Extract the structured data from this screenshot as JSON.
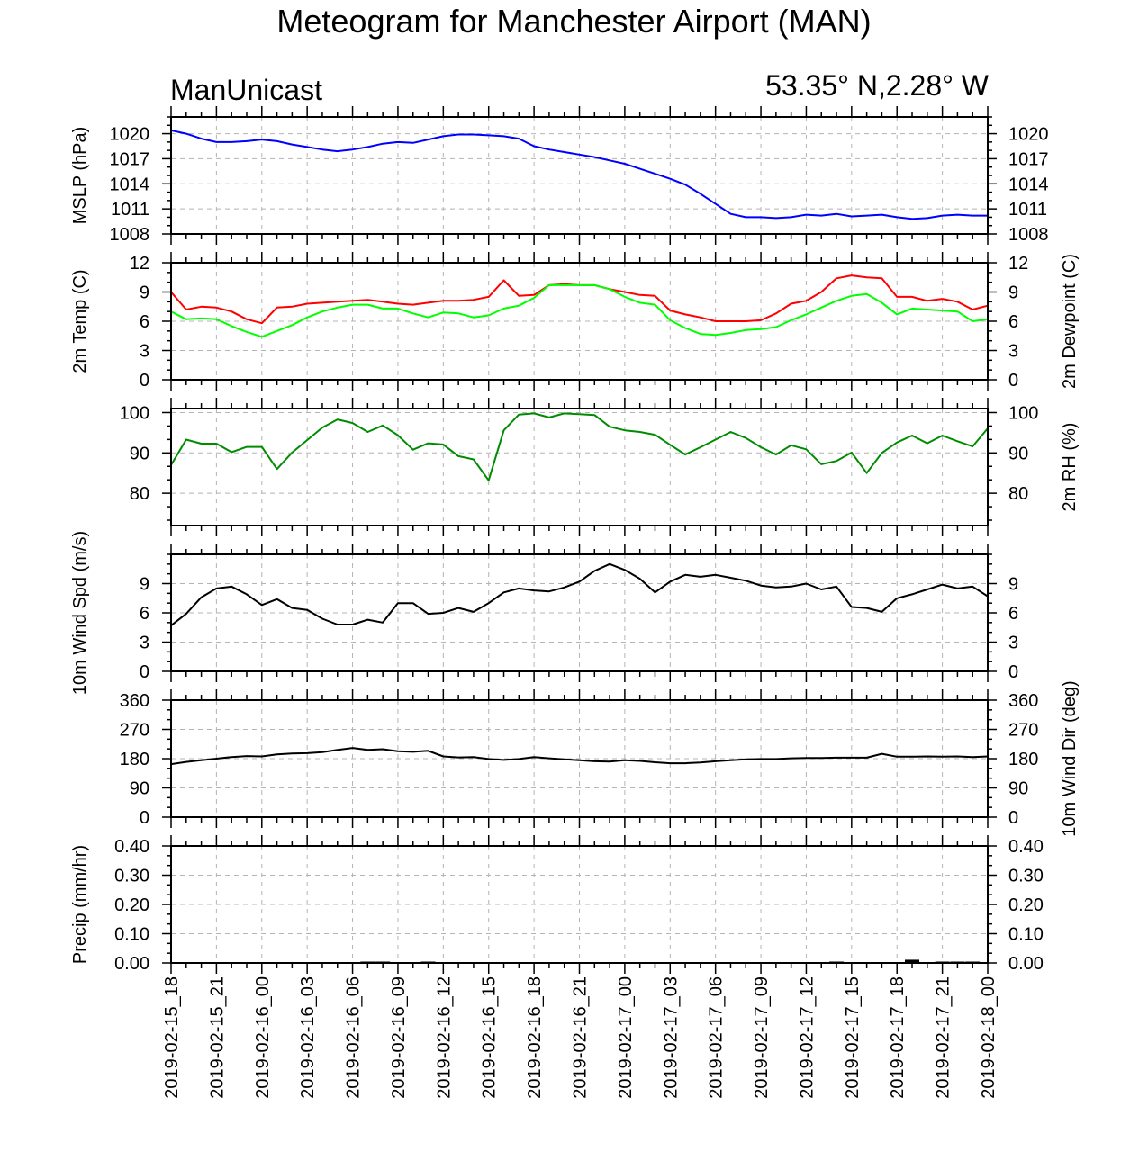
{
  "title": "Meteogram for Manchester Airport (MAN)",
  "subtitle_left": "ManUnicast",
  "subtitle_right": "53.35° N,2.28° W",
  "time_labels": [
    "2019-02-15_18",
    "2019-02-15_21",
    "2019-02-16_00",
    "2019-02-16_03",
    "2019-02-16_06",
    "2019-02-16_09",
    "2019-02-16_12",
    "2019-02-16_15",
    "2019-02-16_18",
    "2019-02-16_21",
    "2019-02-17_00",
    "2019-02-17_03",
    "2019-02-17_06",
    "2019-02-17_09",
    "2019-02-17_12",
    "2019-02-17_15",
    "2019-02-17_18",
    "2019-02-17_21",
    "2019-02-18_00"
  ],
  "colors": {
    "mslp": "#0000ff",
    "temp": "#ff0000",
    "dewpoint": "#00ff00",
    "rh": "#008c00",
    "wind": "#000000",
    "grid": "#b4b4b4"
  },
  "chart_data": [
    {
      "type": "line",
      "left_label": "MSLP (hPa)",
      "right_label": "",
      "ylim": [
        1008,
        1022
      ],
      "yticks": [
        1008,
        1011,
        1014,
        1017,
        1020
      ],
      "ytick_labels": [
        "1008",
        "1011",
        "1014",
        "1017",
        "1020"
      ],
      "x_unit": "hours since 2019-02-15_18",
      "xlim": [
        0,
        54
      ],
      "series": [
        {
          "color": "mslp",
          "x": [
            0,
            1,
            2,
            3,
            4,
            5,
            6,
            7,
            8,
            9,
            10,
            11,
            12,
            13,
            14,
            15,
            16,
            17,
            18,
            19,
            20,
            21,
            22,
            23,
            24,
            25,
            26,
            27,
            28,
            29,
            30,
            31,
            32,
            33,
            34,
            35,
            36,
            37,
            38,
            39,
            40,
            41,
            42,
            43,
            44,
            45,
            46,
            47,
            48,
            49,
            50,
            51,
            52,
            53,
            54
          ],
          "values": [
            1020.4,
            1020,
            1019.4,
            1019,
            1019,
            1019.1,
            1019.3,
            1019.1,
            1018.7,
            1018.4,
            1018.1,
            1017.9,
            1018.1,
            1018.4,
            1018.8,
            1019,
            1018.9,
            1019.3,
            1019.7,
            1019.9,
            1019.9,
            1019.8,
            1019.7,
            1019.4,
            1018.5,
            1018.1,
            1017.8,
            1017.5,
            1017.2,
            1016.8,
            1016.4,
            1015.8,
            1015.2,
            1014.6,
            1013.9,
            1012.8,
            1011.6,
            1010.4,
            1010,
            1010,
            1009.9,
            1010,
            1010.3,
            1010.2,
            1010.4,
            1010.1,
            1010.2,
            1010.3,
            1010,
            1009.8,
            1009.9,
            1010.2,
            1010.3,
            1010.2,
            1010.2
          ]
        }
      ]
    },
    {
      "type": "line",
      "left_label": "2m Temp (C)",
      "right_label": "2m Dewpoint (C)",
      "ylim": [
        0,
        12
      ],
      "yticks": [
        0,
        3,
        6,
        9,
        12
      ],
      "ytick_labels": [
        "0",
        "3",
        "6",
        "9",
        "12"
      ],
      "x_unit": "hours since 2019-02-15_18",
      "xlim": [
        0,
        54
      ],
      "series": [
        {
          "color": "temp",
          "x": [
            0,
            1,
            2,
            3,
            4,
            5,
            6,
            7,
            8,
            9,
            10,
            11,
            12,
            13,
            14,
            15,
            16,
            17,
            18,
            19,
            20,
            21,
            22,
            23,
            24,
            25,
            26,
            27,
            28,
            29,
            30,
            31,
            32,
            33,
            34,
            35,
            36,
            37,
            38,
            39,
            40,
            41,
            42,
            43,
            44,
            45,
            46,
            47,
            48,
            49,
            50,
            51,
            52,
            53,
            54
          ],
          "values": [
            9,
            7.2,
            7.5,
            7.4,
            7,
            6.2,
            5.8,
            7.4,
            7.5,
            7.8,
            7.9,
            8,
            8.1,
            8.2,
            8,
            7.8,
            7.7,
            7.9,
            8.1,
            8.1,
            8.2,
            8.5,
            10.2,
            8.6,
            8.7,
            9.7,
            9.8,
            9.7,
            9.7,
            9.3,
            9,
            8.7,
            8.6,
            7.1,
            6.7,
            6.4,
            6,
            6,
            6,
            6.1,
            6.8,
            7.8,
            8.1,
            9,
            10.4,
            10.7,
            10.5,
            10.4,
            8.5,
            8.5,
            8.1,
            8.3,
            8,
            7.2,
            7.6
          ]
        },
        {
          "color": "dewpoint",
          "x": [
            0,
            1,
            2,
            3,
            4,
            5,
            6,
            7,
            8,
            9,
            10,
            11,
            12,
            13,
            14,
            15,
            16,
            17,
            18,
            19,
            20,
            21,
            22,
            23,
            24,
            25,
            26,
            27,
            28,
            29,
            30,
            31,
            32,
            33,
            34,
            35,
            36,
            37,
            38,
            39,
            40,
            41,
            42,
            43,
            44,
            45,
            46,
            47,
            48,
            49,
            50,
            51,
            52,
            53,
            54
          ],
          "values": [
            7,
            6.2,
            6.3,
            6.2,
            5.5,
            4.9,
            4.4,
            5,
            5.6,
            6.4,
            7,
            7.4,
            7.7,
            7.7,
            7.3,
            7.3,
            6.8,
            6.4,
            6.9,
            6.8,
            6.4,
            6.6,
            7.3,
            7.6,
            8.4,
            9.7,
            9.7,
            9.7,
            9.7,
            9.3,
            8.5,
            7.9,
            7.7,
            6.1,
            5.3,
            4.7,
            4.6,
            4.8,
            5.1,
            5.2,
            5.4,
            6.1,
            6.7,
            7.4,
            8.1,
            8.6,
            8.8,
            7.9,
            6.7,
            7.3,
            7.2,
            7.1,
            7,
            6,
            6.2
          ]
        }
      ]
    },
    {
      "type": "line",
      "left_label": "",
      "right_label": "2m RH (%)",
      "ylim": [
        72,
        101
      ],
      "yticks": [
        80,
        90,
        100
      ],
      "ytick_labels": [
        "80",
        "90",
        "100"
      ],
      "x_unit": "hours since 2019-02-15_18",
      "xlim": [
        0,
        54
      ],
      "series": [
        {
          "color": "rh",
          "x": [
            0,
            1,
            2,
            3,
            4,
            5,
            6,
            7,
            8,
            9,
            10,
            11,
            12,
            13,
            14,
            15,
            16,
            17,
            18,
            19,
            20,
            21,
            22,
            23,
            24,
            25,
            26,
            27,
            28,
            29,
            30,
            31,
            32,
            33,
            34,
            35,
            36,
            37,
            38,
            39,
            40,
            41,
            42,
            43,
            44,
            45,
            46,
            47,
            48,
            49,
            50,
            51,
            52,
            53,
            54
          ],
          "values": [
            87,
            93.3,
            92.3,
            92.3,
            90.2,
            91.5,
            91.5,
            86,
            90.1,
            93.2,
            96.3,
            98.3,
            97.4,
            95.2,
            96.8,
            94.4,
            90.8,
            92.4,
            92.1,
            89.2,
            88.4,
            83.2,
            95.6,
            99.5,
            99.8,
            98.8,
            99.8,
            99.6,
            99.4,
            96.5,
            95.6,
            95.2,
            94.5,
            92,
            89.6,
            91.4,
            93.3,
            95.2,
            93.7,
            91.4,
            89.6,
            91.9,
            90.9,
            87.2,
            88,
            90.1,
            85,
            90,
            92.6,
            94.3,
            92.4,
            94.3,
            92.9,
            91.6,
            96.1
          ]
        }
      ]
    },
    {
      "type": "line",
      "left_label": "10m Wind Spd (m/s)",
      "right_label": "",
      "ylim": [
        0,
        12
      ],
      "yticks": [
        0,
        3,
        6,
        9
      ],
      "ytick_labels": [
        "0",
        "3",
        "6",
        "9"
      ],
      "x_unit": "hours since 2019-02-15_18",
      "xlim": [
        0,
        54
      ],
      "series": [
        {
          "color": "wind",
          "x": [
            0,
            1,
            2,
            3,
            4,
            5,
            6,
            7,
            8,
            9,
            10,
            11,
            12,
            13,
            14,
            15,
            16,
            17,
            18,
            19,
            20,
            21,
            22,
            23,
            24,
            25,
            26,
            27,
            28,
            29,
            30,
            31,
            32,
            33,
            34,
            35,
            36,
            37,
            38,
            39,
            40,
            41,
            42,
            43,
            44,
            45,
            46,
            47,
            48,
            49,
            50,
            51,
            52,
            53,
            54
          ],
          "values": [
            4.7,
            5.9,
            7.6,
            8.5,
            8.7,
            7.9,
            6.8,
            7.4,
            6.5,
            6.3,
            5.4,
            4.8,
            4.8,
            5.3,
            5,
            7,
            7,
            5.9,
            6,
            6.5,
            6.1,
            7,
            8.1,
            8.5,
            8.3,
            8.2,
            8.6,
            9.2,
            10.3,
            11,
            10.4,
            9.5,
            8.1,
            9.2,
            9.9,
            9.7,
            9.9,
            9.6,
            9.3,
            8.8,
            8.6,
            8.7,
            9,
            8.4,
            8.7,
            6.6,
            6.5,
            6.1,
            7.5,
            7.9,
            8.4,
            8.9,
            8.5,
            8.7,
            7.7
          ]
        }
      ]
    },
    {
      "type": "line",
      "left_label": "",
      "right_label": "10m Wind Dir (deg)",
      "ylim": [
        0,
        360
      ],
      "yticks": [
        0,
        90,
        180,
        270,
        360
      ],
      "ytick_labels": [
        "0",
        "90",
        "180",
        "270",
        "360"
      ],
      "x_unit": "hours since 2019-02-15_18",
      "xlim": [
        0,
        54
      ],
      "series": [
        {
          "color": "wind",
          "x": [
            0,
            1,
            2,
            3,
            4,
            5,
            6,
            7,
            8,
            9,
            10,
            11,
            12,
            13,
            14,
            15,
            16,
            17,
            18,
            19,
            20,
            21,
            22,
            23,
            24,
            25,
            26,
            27,
            28,
            29,
            30,
            31,
            32,
            33,
            34,
            35,
            36,
            37,
            38,
            39,
            40,
            41,
            42,
            43,
            44,
            45,
            46,
            47,
            48,
            49,
            50,
            51,
            52,
            53,
            54
          ],
          "values": [
            163,
            170,
            175,
            180,
            185,
            188,
            187,
            193,
            196,
            197,
            200,
            207,
            213,
            207,
            209,
            203,
            201,
            204,
            187,
            184,
            185,
            179,
            176,
            179,
            185,
            181,
            178,
            175,
            172,
            171,
            175,
            173,
            169,
            166,
            166,
            168,
            172,
            175,
            178,
            179,
            179,
            181,
            182,
            182,
            183,
            183,
            183,
            195,
            186,
            186,
            187,
            186,
            187,
            185,
            187
          ]
        }
      ]
    },
    {
      "type": "bar",
      "left_label": "Precip (mm/hr)",
      "right_label": "",
      "ylim": [
        0,
        0.4
      ],
      "yticks": [
        0,
        0.1,
        0.2,
        0.3,
        0.4
      ],
      "ytick_labels": [
        "0.00",
        "0.10",
        "0.20",
        "0.30",
        "0.40"
      ],
      "x_unit": "hours since 2019-02-15_18",
      "xlim": [
        0,
        54
      ],
      "series": [
        {
          "color": "wind",
          "x": [
            13,
            14,
            17,
            44,
            49,
            51,
            52,
            53
          ],
          "values": [
            0.002,
            0.003,
            0.002,
            0.002,
            0.011,
            0.001,
            0.002,
            0.003
          ]
        }
      ]
    }
  ]
}
